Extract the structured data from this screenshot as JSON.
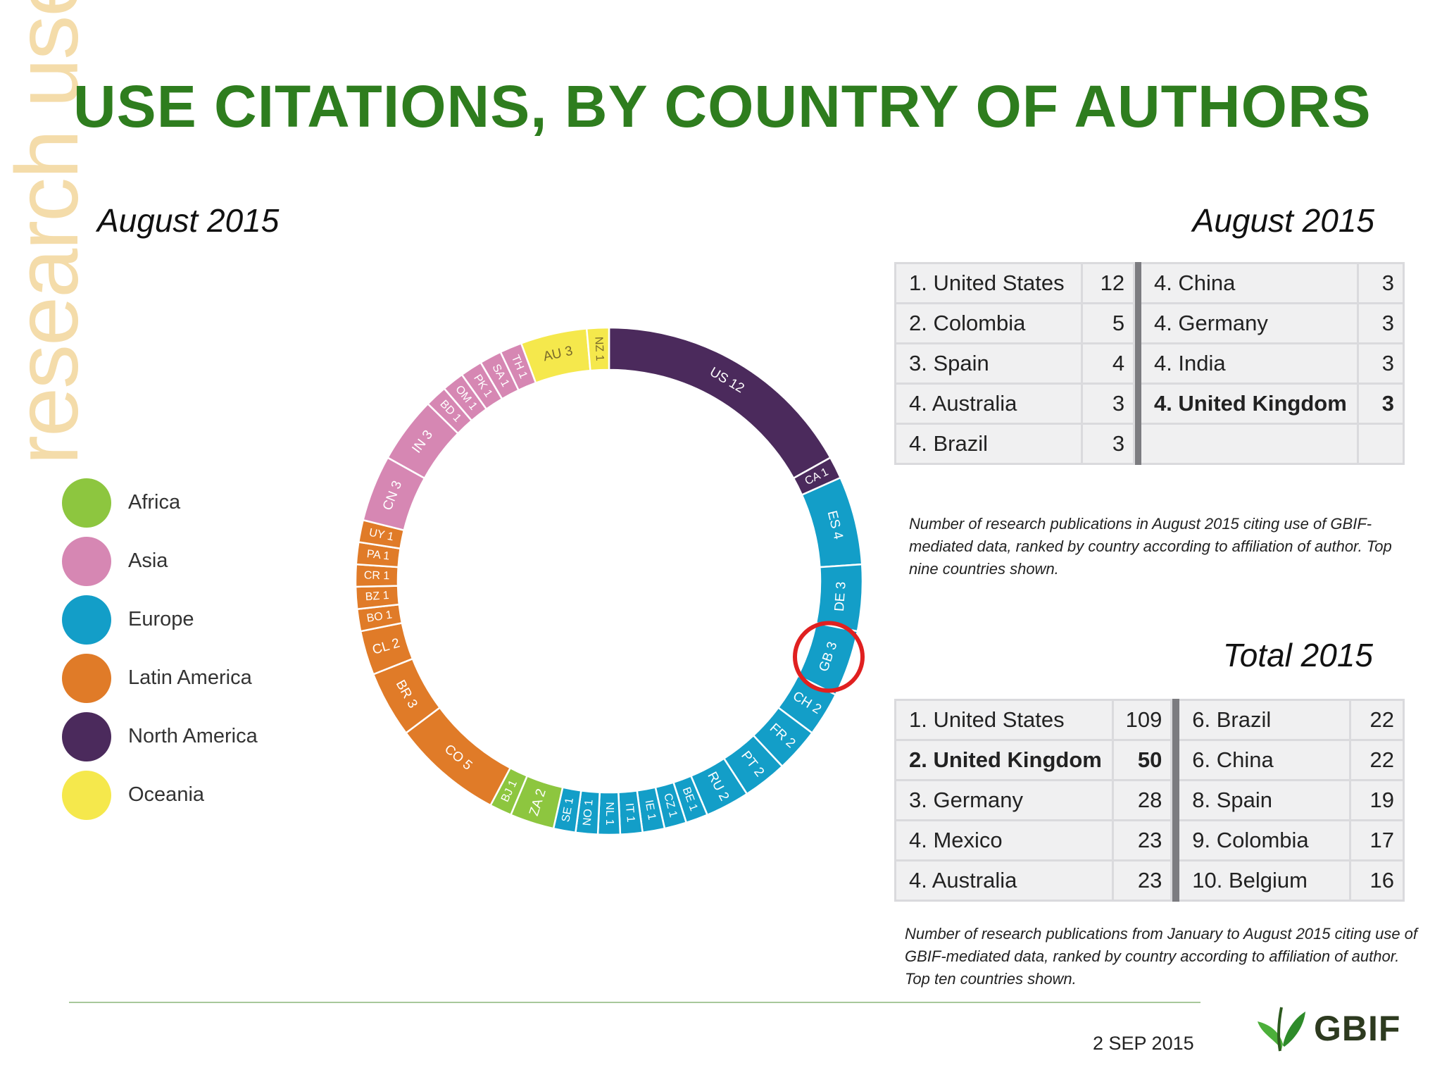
{
  "side_label": "research use",
  "title": "USE CITATIONS, BY COUNTRY OF AUTHORS",
  "chart_subtitle": "August 2015",
  "legend": [
    {
      "label": "Africa",
      "color": "#8dc63f"
    },
    {
      "label": "Asia",
      "color": "#d687b3"
    },
    {
      "label": "Europe",
      "color": "#139ec8"
    },
    {
      "label": "Latin America",
      "color": "#e07b28"
    },
    {
      "label": "North America",
      "color": "#4b2a5c"
    },
    {
      "label": "Oceania",
      "color": "#f5e84c"
    }
  ],
  "chart_data": {
    "type": "pie",
    "style": "donut",
    "highlighted": "GB",
    "highlight_color": "#e02020",
    "slices": [
      {
        "label": "US 12",
        "value": 12,
        "region": "North America"
      },
      {
        "label": "CA 1",
        "value": 1,
        "region": "North America"
      },
      {
        "label": "ES 4",
        "value": 4,
        "region": "Europe"
      },
      {
        "label": "DE 3",
        "value": 3,
        "region": "Europe"
      },
      {
        "label": "GB 3",
        "value": 3,
        "region": "Europe"
      },
      {
        "label": "CH 2",
        "value": 2,
        "region": "Europe"
      },
      {
        "label": "FR 2",
        "value": 2,
        "region": "Europe"
      },
      {
        "label": "PT 2",
        "value": 2,
        "region": "Europe"
      },
      {
        "label": "RU 2",
        "value": 2,
        "region": "Europe"
      },
      {
        "label": "BE 1",
        "value": 1,
        "region": "Europe"
      },
      {
        "label": "CZ 1",
        "value": 1,
        "region": "Europe"
      },
      {
        "label": "IE 1",
        "value": 1,
        "region": "Europe"
      },
      {
        "label": "IT 1",
        "value": 1,
        "region": "Europe"
      },
      {
        "label": "NL 1",
        "value": 1,
        "region": "Europe"
      },
      {
        "label": "NO 1",
        "value": 1,
        "region": "Europe"
      },
      {
        "label": "SE 1",
        "value": 1,
        "region": "Europe"
      },
      {
        "label": "ZA 2",
        "value": 2,
        "region": "Africa"
      },
      {
        "label": "BJ 1",
        "value": 1,
        "region": "Africa"
      },
      {
        "label": "CO 5",
        "value": 5,
        "region": "Latin America"
      },
      {
        "label": "BR 3",
        "value": 3,
        "region": "Latin America"
      },
      {
        "label": "CL 2",
        "value": 2,
        "region": "Latin America"
      },
      {
        "label": "BO 1",
        "value": 1,
        "region": "Latin America"
      },
      {
        "label": "BZ 1",
        "value": 1,
        "region": "Latin America"
      },
      {
        "label": "CR 1",
        "value": 1,
        "region": "Latin America"
      },
      {
        "label": "PA 1",
        "value": 1,
        "region": "Latin America"
      },
      {
        "label": "UY 1",
        "value": 1,
        "region": "Latin America"
      },
      {
        "label": "CN 3",
        "value": 3,
        "region": "Asia"
      },
      {
        "label": "IN 3",
        "value": 3,
        "region": "Asia"
      },
      {
        "label": "BD 1",
        "value": 1,
        "region": "Asia"
      },
      {
        "label": "OM 1",
        "value": 1,
        "region": "Asia"
      },
      {
        "label": "PK 1",
        "value": 1,
        "region": "Asia"
      },
      {
        "label": "SA 1",
        "value": 1,
        "region": "Asia"
      },
      {
        "label": "TH 1",
        "value": 1,
        "region": "Asia"
      },
      {
        "label": "AU 3",
        "value": 3,
        "region": "Oceania"
      },
      {
        "label": "NZ 1",
        "value": 1,
        "region": "Oceania"
      }
    ]
  },
  "table1": {
    "title": "August 2015",
    "rows": [
      {
        "left_name": "1. United States",
        "left_value": "12",
        "right_name": "4. China",
        "right_value": "3"
      },
      {
        "left_name": "2. Colombia",
        "left_value": "5",
        "right_name": "4. Germany",
        "right_value": "3"
      },
      {
        "left_name": "3. Spain",
        "left_value": "4",
        "right_name": "4. India",
        "right_value": "3"
      },
      {
        "left_name": "4. Australia",
        "left_value": "3",
        "right_name": "4. United Kingdom",
        "right_value": "3"
      },
      {
        "left_name": "4. Brazil",
        "left_value": "3",
        "right_name": "",
        "right_value": ""
      }
    ],
    "note": "Number of research publications in August 2015 citing use of GBIF-mediated data, ranked by country according to affiliation of author. Top nine countries shown."
  },
  "table2": {
    "title": "Total 2015",
    "rows": [
      {
        "left_name": "1. United States",
        "left_value": "109",
        "right_name": "6. Brazil",
        "right_value": "22"
      },
      {
        "left_name": "2. United Kingdom",
        "left_value": "50",
        "right_name": "6. China",
        "right_value": "22"
      },
      {
        "left_name": "3. Germany",
        "left_value": "28",
        "right_name": "8. Spain",
        "right_value": "19"
      },
      {
        "left_name": "4. Mexico",
        "left_value": "23",
        "right_name": "9. Colombia",
        "right_value": "17"
      },
      {
        "left_name": "4. Australia",
        "left_value": "23",
        "right_name": "10. Belgium",
        "right_value": "16"
      }
    ],
    "note": "Number of research publications from January to August 2015 citing use of GBIF-mediated data, ranked by country according to affiliation of author. Top ten countries shown."
  },
  "footer": {
    "date": "2 SEP 2015",
    "logo_text": "GBIF",
    "logo_icon": "leaf-icon"
  }
}
